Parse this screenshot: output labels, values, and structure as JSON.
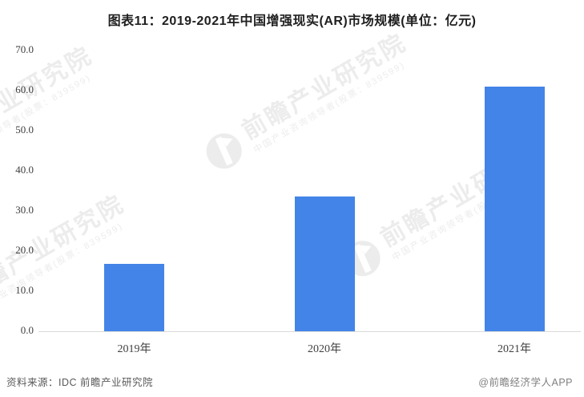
{
  "chart_data": {
    "type": "bar",
    "title": "图表11：2019-2021年中国增强现实(AR)市场规模(单位：亿元)",
    "categories": [
      "2019年",
      "2020年",
      "2021年"
    ],
    "values": [
      16.8,
      33.6,
      61.0
    ],
    "unit": "亿元",
    "xlabel": "",
    "ylabel": "",
    "ylim": [
      0,
      70
    ],
    "ytick_step": 10,
    "ytick_labels": [
      "0.0",
      "10.0",
      "20.0",
      "30.0",
      "40.0",
      "50.0",
      "60.0",
      "70.0"
    ],
    "grid": false,
    "legend": false,
    "bar_color": "#4384e8",
    "axis_line_color": "#d9d9d9"
  },
  "footer": {
    "source": "资料来源：IDC 前瞻产业研究院",
    "credit": "@前瞻经济学人APP"
  },
  "watermark": {
    "icon": "qianzhan-logo",
    "text_large": "前瞻产业研究院",
    "text_small": "中国产业咨询领导者(股票：839599)",
    "color": "#ececec"
  }
}
